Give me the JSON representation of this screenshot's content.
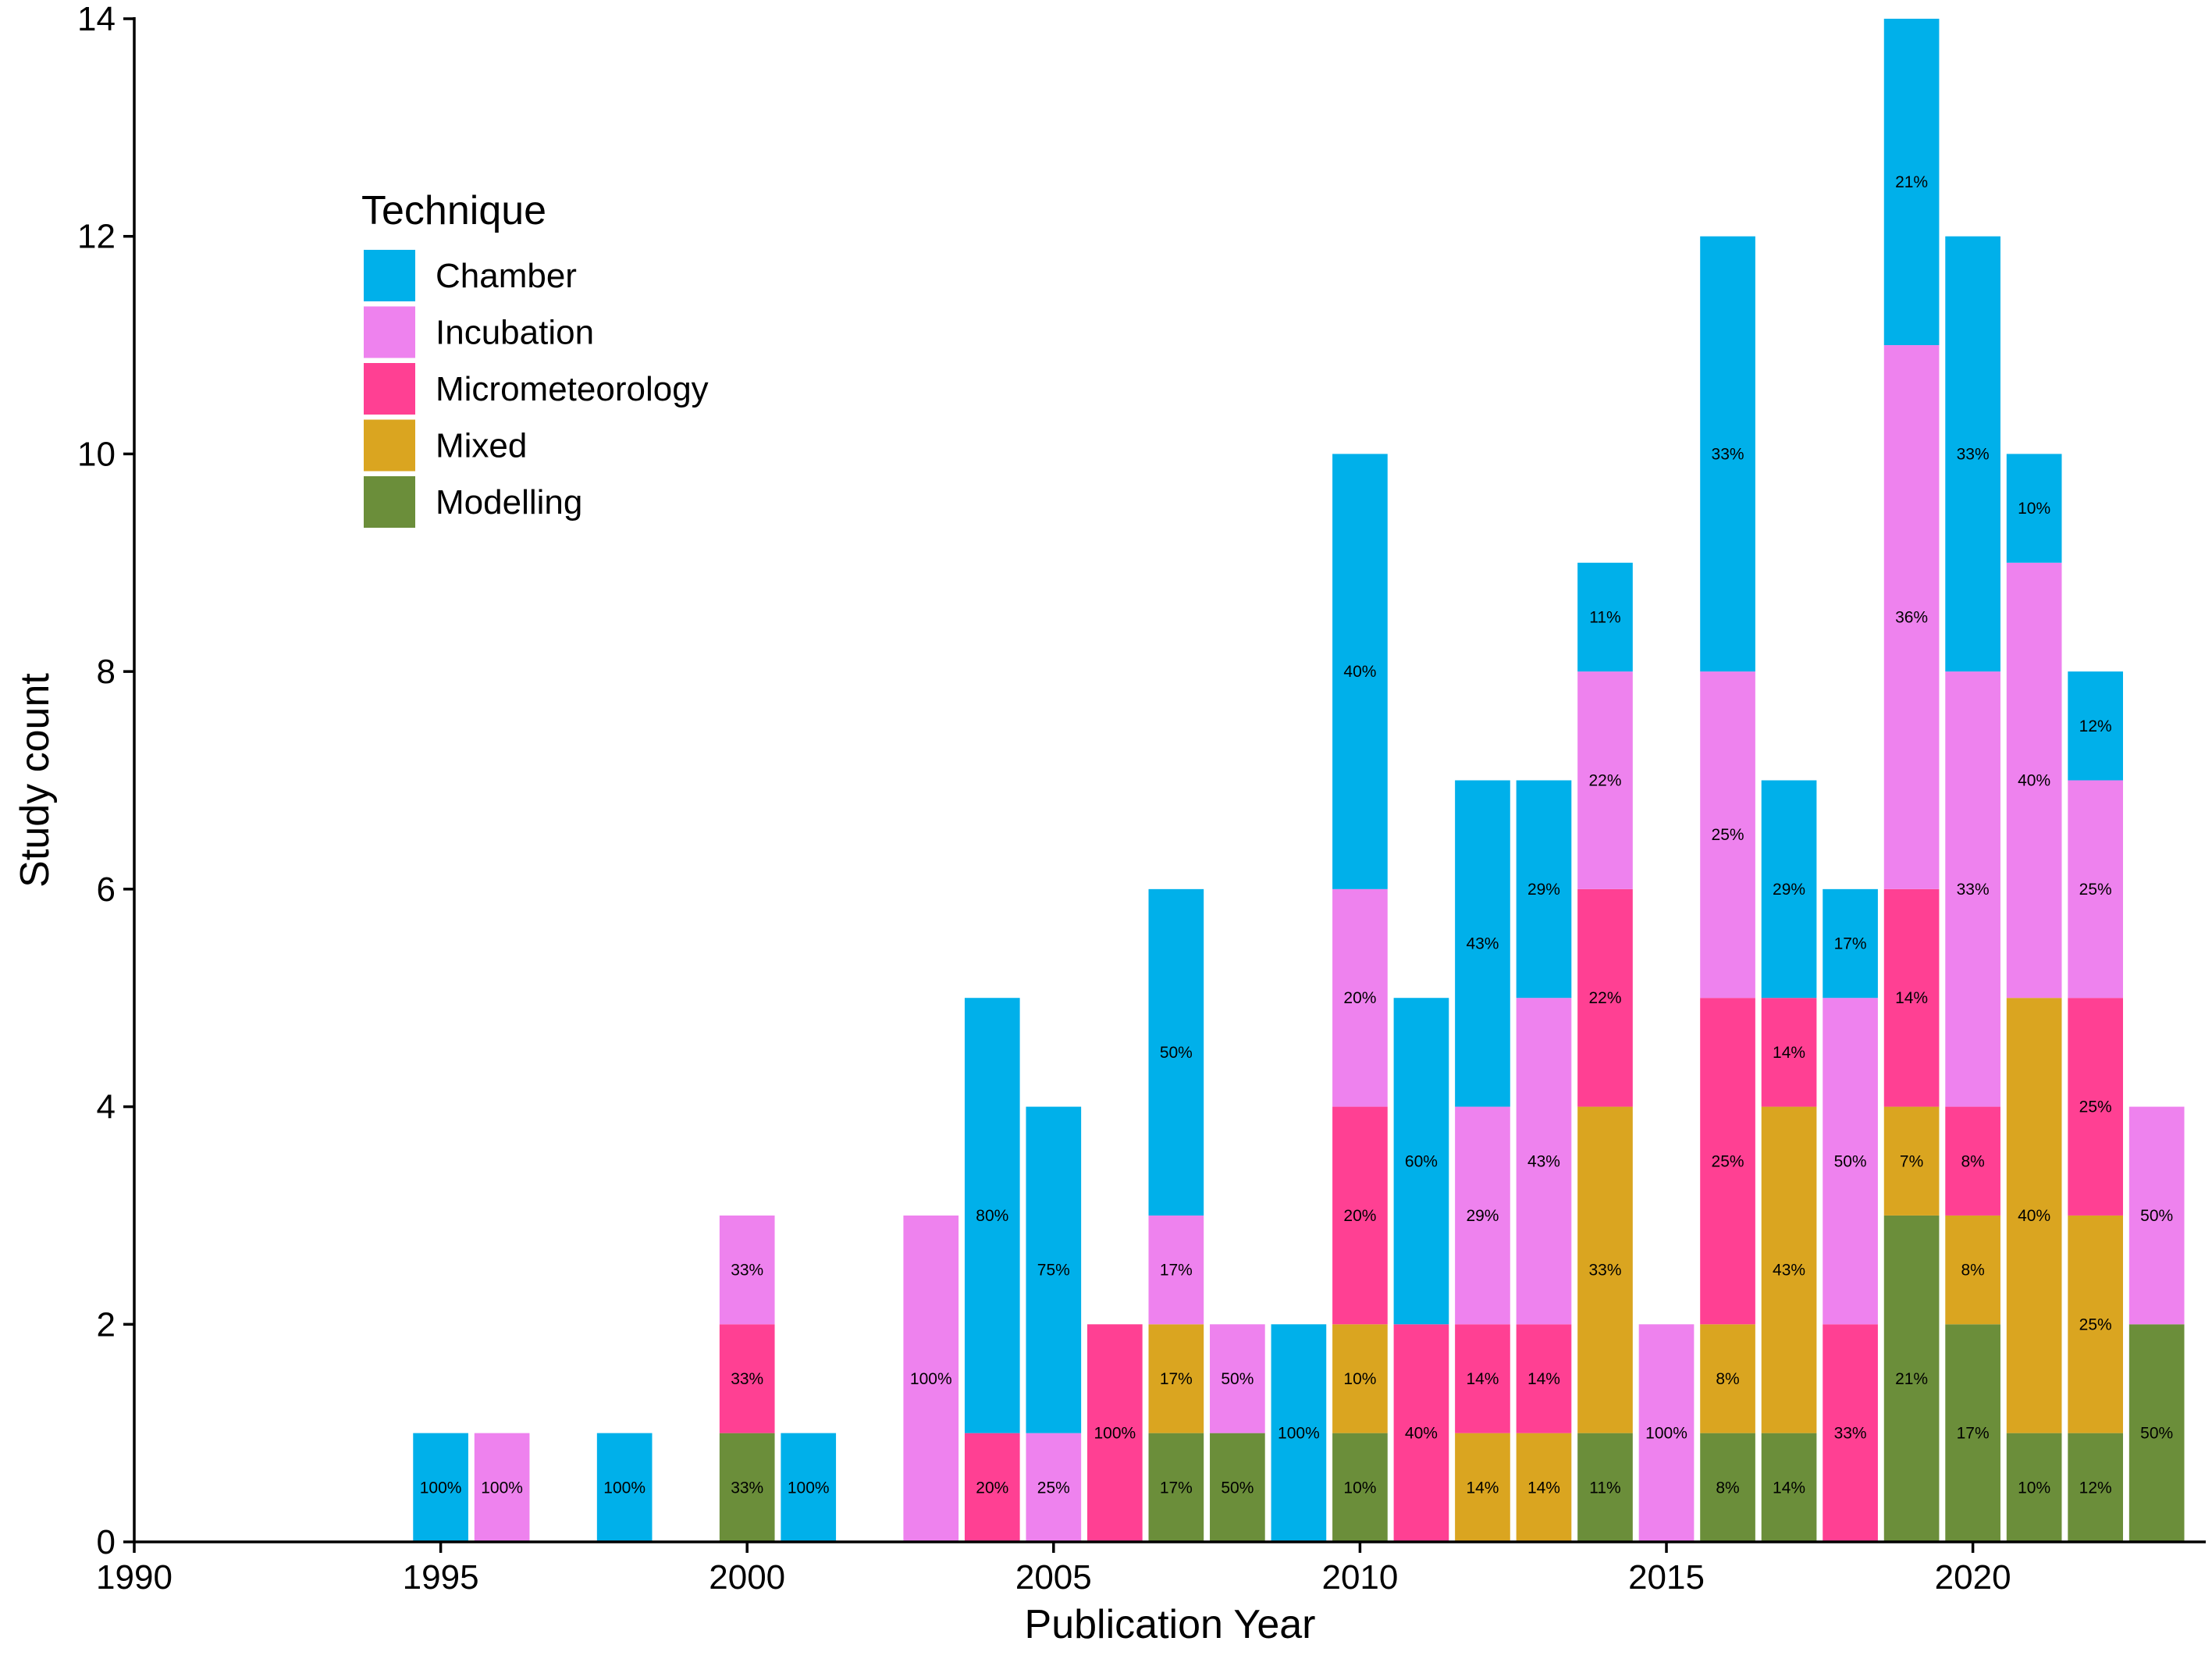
{
  "chart_data": {
    "type": "bar",
    "stacked": true,
    "xlabel": "Publication Year",
    "ylabel": "Study count",
    "xlim": [
      1990,
      2023.8
    ],
    "ylim": [
      0,
      14
    ],
    "x_ticks": [
      "1990",
      "1995",
      "2000",
      "2005",
      "2010",
      "2015",
      "2020"
    ],
    "y_ticks": [
      "0",
      "2",
      "4",
      "6",
      "8",
      "10",
      "12",
      "14"
    ],
    "grid": false,
    "legend": {
      "title": "Technique",
      "placement": "top-left",
      "entries": [
        "Chamber",
        "Incubation",
        "Micrometeorology",
        "Mixed",
        "Modelling"
      ]
    },
    "colors": {
      "Chamber": "#00B0EA",
      "Incubation": "#EE82EE",
      "Micrometeorology": "#FF4093",
      "Mixed": "#DAA520",
      "Modelling": "#6B8E3A"
    },
    "stack_order": [
      "Modelling",
      "Mixed",
      "Micrometeorology",
      "Incubation",
      "Chamber"
    ],
    "bars": [
      {
        "year": 1995,
        "Chamber": 1,
        "labels": {
          "Chamber": "100%"
        }
      },
      {
        "year": 1996,
        "Incubation": 1,
        "labels": {
          "Incubation": "100%"
        }
      },
      {
        "year": 1998,
        "Chamber": 1,
        "labels": {
          "Chamber": "100%"
        }
      },
      {
        "year": 2000,
        "Modelling": 1,
        "Micrometeorology": 1,
        "Incubation": 1,
        "labels": {
          "Modelling": "33%",
          "Micrometeorology": "33%",
          "Incubation": "33%"
        }
      },
      {
        "year": 2001,
        "Chamber": 1,
        "labels": {
          "Chamber": "100%"
        }
      },
      {
        "year": 2003,
        "Incubation": 3,
        "labels": {
          "Incubation": "100%"
        }
      },
      {
        "year": 2004,
        "Micrometeorology": 1,
        "Chamber": 4,
        "labels": {
          "Micrometeorology": "20%",
          "Chamber": "80%"
        }
      },
      {
        "year": 2005,
        "Incubation": 1,
        "Chamber": 3,
        "labels": {
          "Incubation": "25%",
          "Chamber": "75%"
        }
      },
      {
        "year": 2006,
        "Micrometeorology": 2,
        "labels": {
          "Micrometeorology": "100%"
        }
      },
      {
        "year": 2007,
        "Modelling": 1,
        "Mixed": 1,
        "Incubation": 1,
        "Chamber": 3,
        "labels": {
          "Modelling": "17%",
          "Mixed": "17%",
          "Incubation": "17%",
          "Chamber": "50%"
        }
      },
      {
        "year": 2008,
        "Modelling": 1,
        "Incubation": 1,
        "labels": {
          "Modelling": "50%",
          "Incubation": "50%"
        }
      },
      {
        "year": 2009,
        "Chamber": 2,
        "labels": {
          "Chamber": "100%"
        }
      },
      {
        "year": 2010,
        "Modelling": 1,
        "Mixed": 1,
        "Micrometeorology": 2,
        "Incubation": 2,
        "Chamber": 4,
        "labels": {
          "Modelling": "10%",
          "Mixed": "10%",
          "Micrometeorology": "20%",
          "Incubation": "20%",
          "Chamber": "40%"
        }
      },
      {
        "year": 2011,
        "Micrometeorology": 2,
        "Chamber": 3,
        "labels": {
          "Micrometeorology": "40%",
          "Chamber": "60%"
        }
      },
      {
        "year": 2012,
        "Mixed": 1,
        "Micrometeorology": 1,
        "Incubation": 2,
        "Chamber": 3,
        "labels": {
          "Mixed": "14%",
          "Micrometeorology": "14%",
          "Incubation": "29%",
          "Chamber": "43%"
        }
      },
      {
        "year": 2013,
        "Mixed": 1,
        "Micrometeorology": 1,
        "Incubation": 3,
        "Chamber": 2,
        "labels": {
          "Mixed": "14%",
          "Micrometeorology": "14%",
          "Incubation": "43%",
          "Chamber": "29%"
        }
      },
      {
        "year": 2014,
        "Modelling": 1,
        "Mixed": 3,
        "Micrometeorology": 2,
        "Incubation": 2,
        "Chamber": 1,
        "labels": {
          "Modelling": "11%",
          "Mixed": "33%",
          "Micrometeorology": "22%",
          "Incubation": "22%",
          "Chamber": "11%"
        }
      },
      {
        "year": 2015,
        "Incubation": 2,
        "labels": {
          "Incubation": "100%"
        }
      },
      {
        "year": 2016,
        "Modelling": 1,
        "Mixed": 1,
        "Micrometeorology": 3,
        "Incubation": 3,
        "Chamber": 4,
        "labels": {
          "Modelling": "8%",
          "Mixed": "8%",
          "Micrometeorology": "25%",
          "Incubation": "25%",
          "Chamber": "33%"
        }
      },
      {
        "year": 2017,
        "Modelling": 1,
        "Mixed": 3,
        "Micrometeorology": 1,
        "Chamber": 2,
        "labels": {
          "Modelling": "14%",
          "Mixed": "43%",
          "Micrometeorology": "14%",
          "Chamber": "29%"
        }
      },
      {
        "year": 2018,
        "Micrometeorology": 2,
        "Incubation": 3,
        "Chamber": 1,
        "labels": {
          "Micrometeorology": "33%",
          "Incubation": "50%",
          "Chamber": "17%"
        }
      },
      {
        "year": 2019,
        "Modelling": 3,
        "Mixed": 1,
        "Micrometeorology": 2,
        "Incubation": 5,
        "Chamber": 3,
        "labels": {
          "Modelling": "21%",
          "Mixed": "7%",
          "Micrometeorology": "14%",
          "Incubation": "36%",
          "Chamber": "21%"
        }
      },
      {
        "year": 2020,
        "Modelling": 2,
        "Mixed": 1,
        "Micrometeorology": 1,
        "Incubation": 4,
        "Chamber": 4,
        "labels": {
          "Modelling": "17%",
          "Mixed": "8%",
          "Micrometeorology": "8%",
          "Incubation": "33%",
          "Chamber": "33%"
        }
      },
      {
        "year": 2021,
        "Modelling": 1,
        "Mixed": 4,
        "Incubation": 4,
        "Chamber": 1,
        "labels": {
          "Modelling": "10%",
          "Mixed": "40%",
          "Incubation": "40%",
          "Chamber": "10%"
        }
      },
      {
        "year": 2022,
        "Modelling": 1,
        "Mixed": 2,
        "Micrometeorology": 2,
        "Incubation": 2,
        "Chamber": 1,
        "labels": {
          "Modelling": "12%",
          "Mixed": "25%",
          "Micrometeorology": "25%",
          "Incubation": "25%",
          "Chamber": "12%"
        }
      },
      {
        "year": 2023,
        "Modelling": 2,
        "Incubation": 2,
        "labels": {
          "Modelling": "50%",
          "Incubation": "50%"
        }
      }
    ]
  }
}
